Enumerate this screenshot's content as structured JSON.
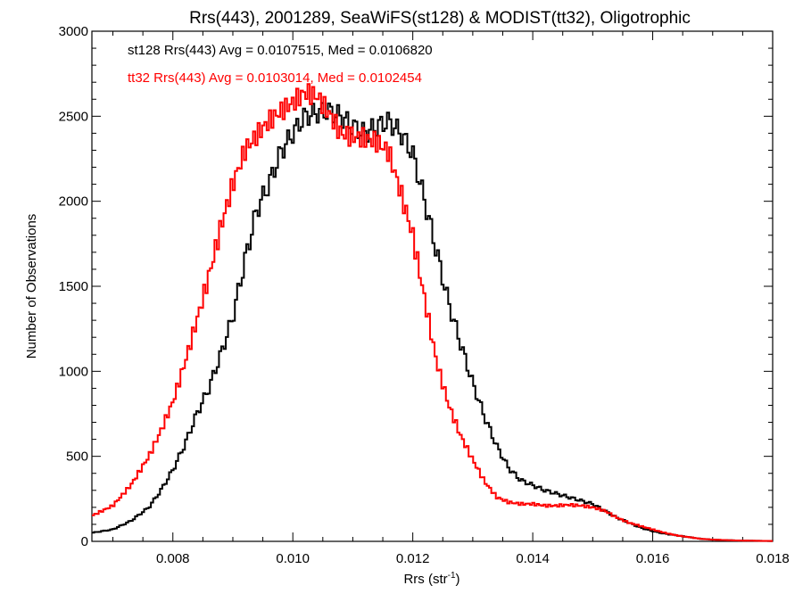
{
  "chart_data": {
    "type": "line",
    "title": "Rrs(443), 2001289, SeaWiFS(st128) & MODIST(tt32), Oligotrophic",
    "xlabel": "Rrs (str",
    "xlabel_sup": "-1",
    "xlabel_close": ")",
    "ylabel": "Number of Observations",
    "xlim": [
      0.00665,
      0.018
    ],
    "ylim": [
      0,
      3000
    ],
    "xticks": [
      0.008,
      0.01,
      0.012,
      0.014,
      0.016,
      0.018
    ],
    "xtick_labels": [
      "0.008",
      "0.010",
      "0.012",
      "0.014",
      "0.016",
      "0.018"
    ],
    "yticks": [
      0,
      500,
      1000,
      1500,
      2000,
      2500,
      3000
    ],
    "ytick_labels": [
      "0",
      "500",
      "1000",
      "1500",
      "2000",
      "2500",
      "3000"
    ],
    "step_style": "histogram",
    "series": [
      {
        "name": "st128",
        "color": "#000000",
        "annotation": "st128 Rrs(443) Avg = 0.0107515, Med = 0.0106820",
        "x": [
          0.00665,
          0.007,
          0.0073,
          0.0076,
          0.0078,
          0.008,
          0.0082,
          0.0084,
          0.0086,
          0.0088,
          0.009,
          0.0092,
          0.0094,
          0.0096,
          0.0098,
          0.01,
          0.0102,
          0.0104,
          0.0106,
          0.0108,
          0.011,
          0.0112,
          0.0114,
          0.0116,
          0.0118,
          0.012,
          0.0122,
          0.0124,
          0.0126,
          0.0128,
          0.013,
          0.0132,
          0.0134,
          0.0136,
          0.0138,
          0.014,
          0.0142,
          0.0144,
          0.0146,
          0.0148,
          0.015,
          0.0152,
          0.0154,
          0.0156,
          0.0158,
          0.016,
          0.0162,
          0.0164,
          0.0166,
          0.0168,
          0.017,
          0.0174,
          0.018
        ],
        "y": [
          50,
          70,
          120,
          200,
          300,
          420,
          570,
          750,
          900,
          1100,
          1320,
          1650,
          1950,
          2100,
          2290,
          2400,
          2500,
          2520,
          2530,
          2500,
          2440,
          2400,
          2440,
          2470,
          2400,
          2280,
          2000,
          1700,
          1400,
          1160,
          930,
          730,
          560,
          430,
          360,
          330,
          300,
          280,
          260,
          240,
          220,
          180,
          140,
          110,
          80,
          60,
          45,
          35,
          25,
          15,
          10,
          5,
          2
        ]
      },
      {
        "name": "tt32",
        "color": "#ff0000",
        "annotation": "tt32 Rrs(443) Avg = 0.0103014, Med = 0.0102454",
        "x": [
          0.00665,
          0.007,
          0.0073,
          0.0076,
          0.0078,
          0.008,
          0.0082,
          0.0084,
          0.0086,
          0.0088,
          0.009,
          0.0092,
          0.0094,
          0.0096,
          0.0098,
          0.01,
          0.0102,
          0.0104,
          0.0106,
          0.0108,
          0.011,
          0.0112,
          0.0114,
          0.0116,
          0.0118,
          0.012,
          0.0122,
          0.0124,
          0.0126,
          0.0128,
          0.013,
          0.0132,
          0.0134,
          0.0136,
          0.0138,
          0.014,
          0.0142,
          0.0144,
          0.0146,
          0.0148,
          0.015,
          0.0152,
          0.0154,
          0.0156,
          0.0158,
          0.016,
          0.0162,
          0.0164,
          0.0166,
          0.0168,
          0.017,
          0.0174,
          0.018
        ],
        "y": [
          150,
          210,
          330,
          500,
          650,
          820,
          1050,
          1300,
          1560,
          1850,
          2100,
          2300,
          2390,
          2470,
          2530,
          2580,
          2640,
          2620,
          2520,
          2400,
          2380,
          2370,
          2350,
          2290,
          2050,
          1800,
          1420,
          1050,
          800,
          620,
          480,
          350,
          260,
          230,
          220,
          220,
          210,
          210,
          215,
          210,
          200,
          180,
          140,
          110,
          90,
          70,
          50,
          35,
          25,
          15,
          10,
          5,
          2
        ]
      }
    ]
  }
}
